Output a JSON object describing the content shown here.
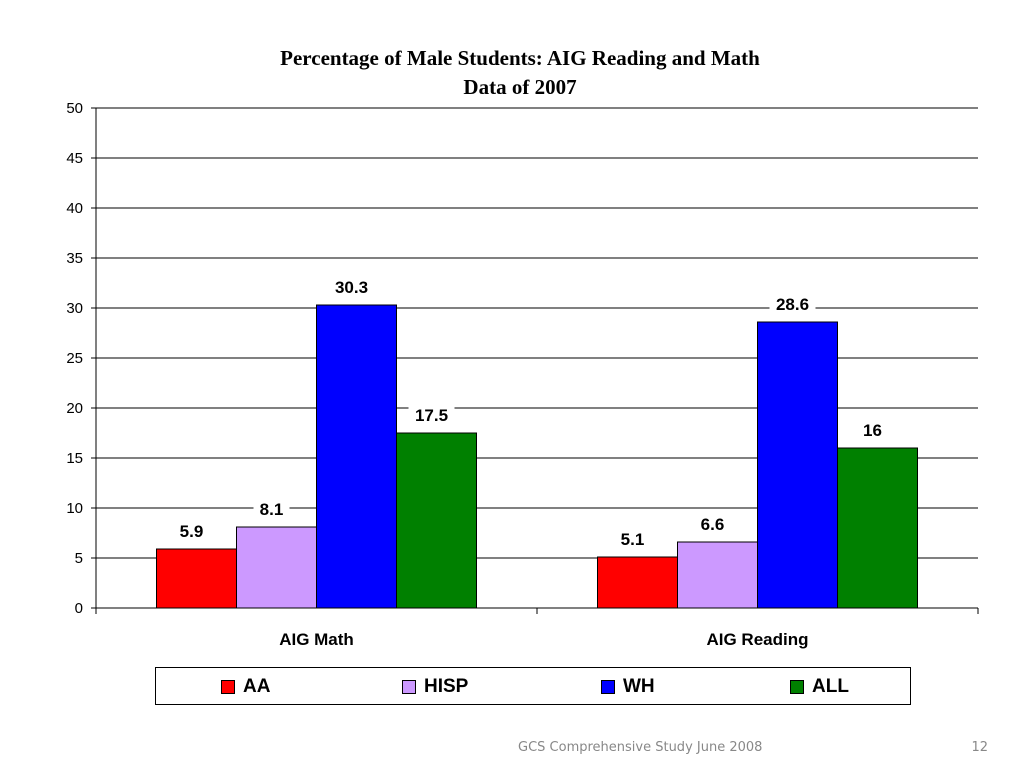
{
  "chart_data": {
    "type": "bar",
    "title": "Percentage of Male Students: AIG Reading and Math",
    "subtitle": "Data of 2007",
    "categories": [
      "AIG Math",
      "AIG Reading"
    ],
    "series": [
      {
        "name": "AA",
        "values": [
          5.9,
          5.1
        ],
        "color": "#ff0000"
      },
      {
        "name": "HISP",
        "values": [
          8.1,
          6.6
        ],
        "color": "#cc99ff"
      },
      {
        "name": "WH",
        "values": [
          30.3,
          28.6
        ],
        "color": "#0000ff"
      },
      {
        "name": "ALL",
        "values": [
          17.5,
          16
        ],
        "color": "#008000"
      }
    ],
    "data_labels": [
      [
        "5.9",
        "5.1"
      ],
      [
        "8.1",
        "6.6"
      ],
      [
        "30.3",
        "28.6"
      ],
      [
        "17.5",
        "16"
      ]
    ],
    "ylim": [
      0,
      50
    ],
    "yticks": [
      0,
      5,
      10,
      15,
      20,
      25,
      30,
      35,
      40,
      45,
      50
    ],
    "grid": true,
    "legend_position": "bottom"
  },
  "footer": {
    "text": "GCS Comprehensive Study June 2008",
    "page_number": "12"
  }
}
